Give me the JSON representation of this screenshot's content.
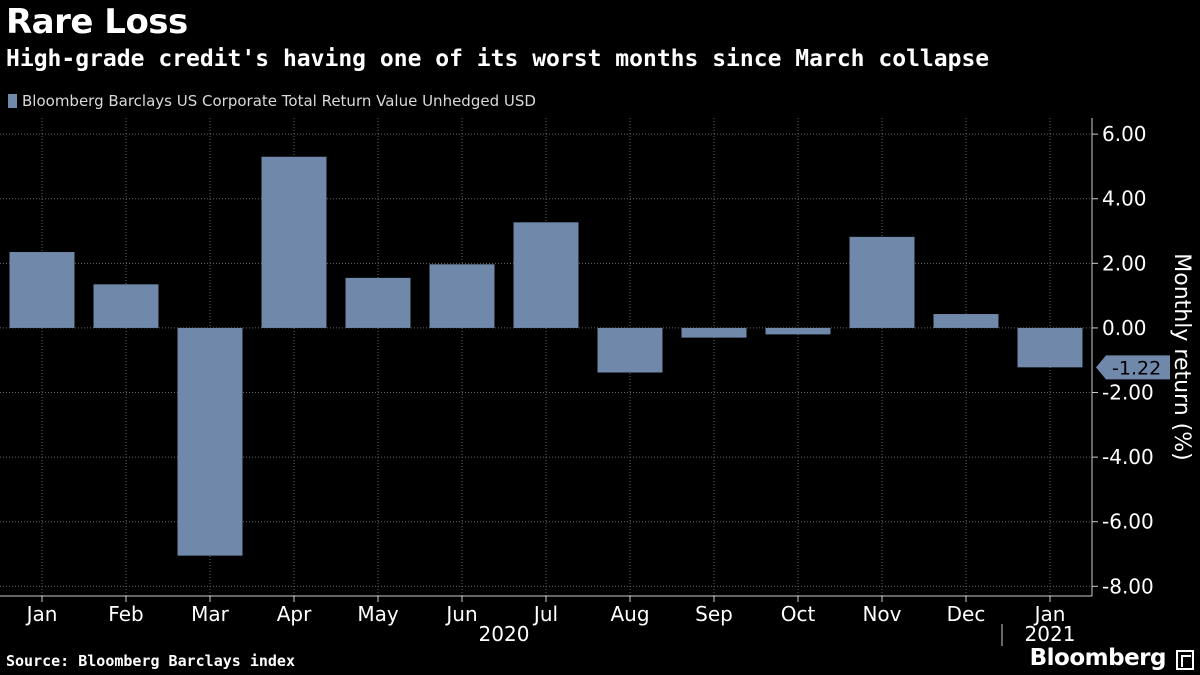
{
  "header": {
    "title": "Rare Loss",
    "subtitle": "High-grade credit's having one of its worst months since March collapse"
  },
  "legend": {
    "label": "Bloomberg Barclays US Corporate Total Return Value Unhedged USD"
  },
  "footer": {
    "source": "Source: Bloomberg Barclays index",
    "brand": "Bloomberg"
  },
  "colors": {
    "background": "#000000",
    "bar": "#7088aa",
    "grid": "#666666",
    "text": "#ffffff"
  },
  "chart_data": {
    "type": "bar",
    "categories": [
      "Jan",
      "Feb",
      "Mar",
      "Apr",
      "May",
      "Jun",
      "Jul",
      "Aug",
      "Sep",
      "Oct",
      "Nov",
      "Dec",
      "Jan"
    ],
    "year_labels": [
      {
        "label": "2020",
        "from": 0,
        "to": 11
      },
      {
        "label": "2021",
        "from": 12,
        "to": 12
      }
    ],
    "series": [
      {
        "name": "Bloomberg Barclays US Corporate Total Return Value Unhedged USD",
        "values": [
          2.35,
          1.35,
          -7.05,
          5.3,
          1.55,
          1.97,
          3.27,
          -1.38,
          -0.3,
          -0.2,
          2.82,
          0.43,
          -1.22
        ]
      }
    ],
    "ylabel": "Monthly return (%)",
    "ylim": [
      -8.3,
      6.5
    ],
    "yticks": [
      6,
      4,
      2,
      0,
      -2,
      -4,
      -6,
      -8
    ],
    "ytick_labels": [
      "6.00",
      "4.00",
      "2.00",
      "0.00",
      "-2.00",
      "-4.00",
      "-6.00",
      "-8.00"
    ],
    "last_value_label": "-1.22",
    "grid": true,
    "legend_position": "top-left"
  }
}
